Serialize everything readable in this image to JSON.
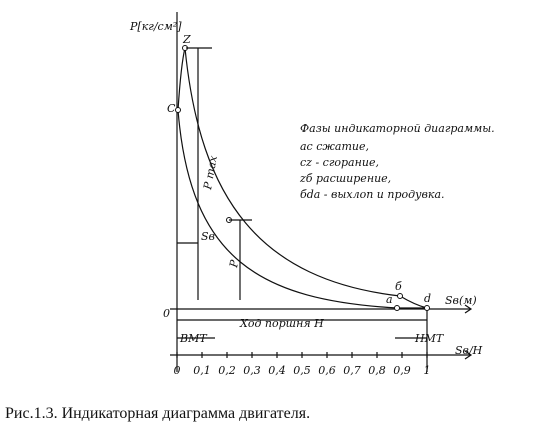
{
  "axes": {
    "y_label": "Р[кг/см²]",
    "x_label": "Sв(м)",
    "origin": "0",
    "x_scale_label": "Sв/Н",
    "ticks": [
      "0",
      "0,1",
      "0,2",
      "0,3",
      "0,4",
      "0,5",
      "0,6",
      "0,7",
      "0,8",
      "0,9",
      "1"
    ]
  },
  "points": {
    "z": "Z",
    "c": "C",
    "b": "б",
    "a": "a",
    "d": "d"
  },
  "dimensions": {
    "p_max": "Р max",
    "p": "Р",
    "s": "Sв",
    "stroke": "Ход поршня Н",
    "tdc": "ВМТ",
    "bdc": "НМТ"
  },
  "legend": {
    "title": "Фазы индикаторной диаграммы.",
    "items": [
      "ас  сжатие,",
      "cz - сгорание,",
      "zб  расширение,",
      "бda - выхлоп и продувка."
    ]
  },
  "caption": "Рис.1.3.  Индикаторная диаграмма двигателя."
}
